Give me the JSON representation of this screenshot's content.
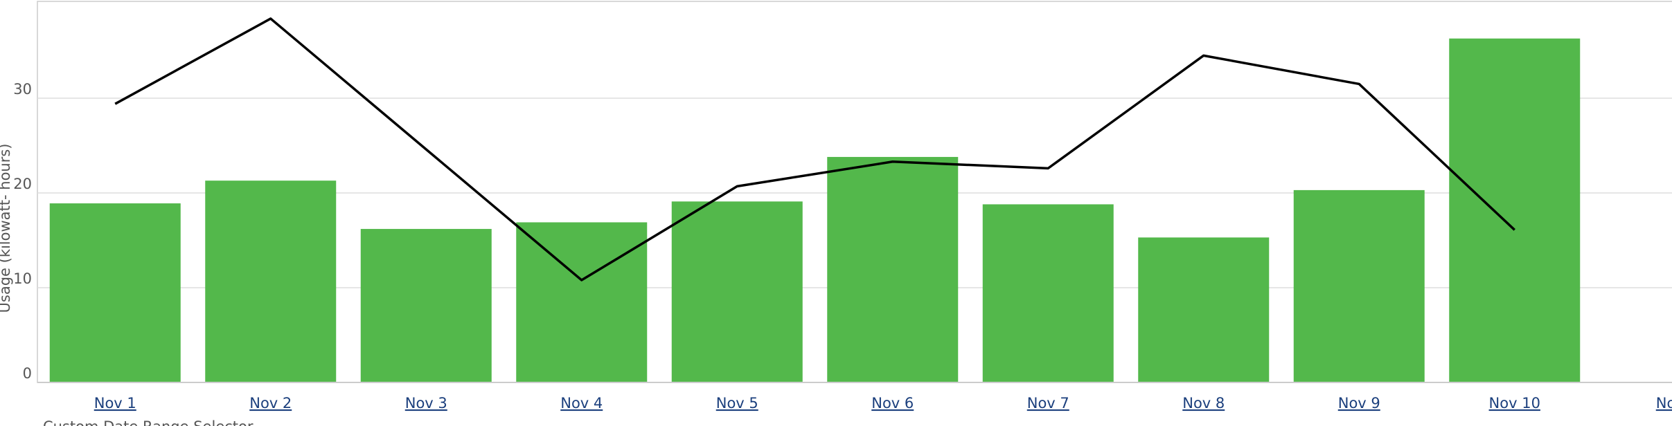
{
  "chart_data": {
    "type": "bar",
    "y_label": "Usage (kilowatt- hours)",
    "footer": "Custom Date Range Selector",
    "categories": [
      "Nov 1",
      "Nov 2",
      "Nov 3",
      "Nov 4",
      "Nov 5",
      "Nov 6",
      "Nov 7",
      "Nov 8",
      "Nov 9",
      "Nov 10",
      "Nov"
    ],
    "series": [
      {
        "type": "bar",
        "color": "#53b84b",
        "values": [
          18.9,
          21.3,
          16.2,
          16.9,
          19.1,
          23.8,
          18.8,
          15.3,
          20.3,
          36.3,
          null
        ]
      },
      {
        "type": "line",
        "color": "#000000",
        "values": [
          29.4,
          38.4,
          24.6,
          10.8,
          20.7,
          23.3,
          22.6,
          34.5,
          31.5,
          16.1,
          null
        ]
      }
    ],
    "ylim": [
      0,
      40
    ],
    "yticks": [
      0,
      10,
      20,
      30
    ],
    "grid": true
  }
}
